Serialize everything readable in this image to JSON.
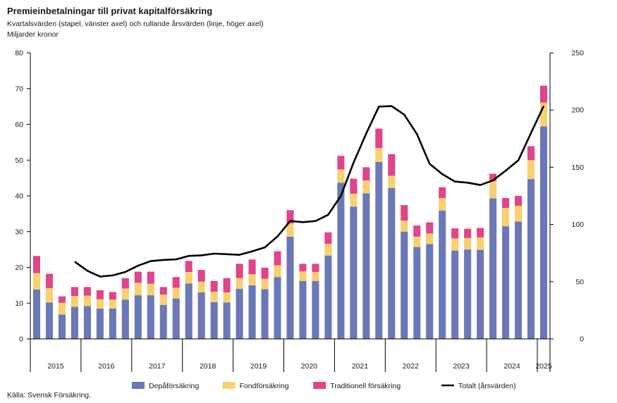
{
  "title": "Premieinbetalningar till privat kapitalförsäkring",
  "subtitle": "Kvartalsvärden (stapel, vänster axel) och rullande årsvärden (linje, höger axel)",
  "unit_label": "Miljarder kronor",
  "source": "Källa: Svensk Försäkring.",
  "chart_data": {
    "type": "bar",
    "stacked": true,
    "title": "Premieinbetalningar till privat kapitalförsäkring",
    "ylim": [
      0,
      80
    ],
    "y_ticks": [
      0,
      10,
      20,
      30,
      40,
      50,
      60,
      70,
      80
    ],
    "y2lim": [
      0,
      250
    ],
    "y2_ticks": [
      0,
      50,
      100,
      150,
      200,
      250
    ],
    "grid": false,
    "legend_position": "bottom",
    "year_labels": [
      "2015",
      "2016",
      "2017",
      "2018",
      "2019",
      "2020",
      "2021",
      "2022",
      "2023",
      "2024",
      "2025"
    ],
    "quarters_per_year": [
      4,
      4,
      4,
      4,
      4,
      4,
      4,
      4,
      4,
      4,
      1
    ],
    "colors": {
      "depa": "#6a78b8",
      "fond": "#f7d06f",
      "trad": "#e0448a",
      "total": "#000000",
      "axis": "#000000"
    },
    "series": [
      {
        "name": "Depåförsäkring",
        "axis": "left",
        "values": [
          13.8,
          10.2,
          6.8,
          9.0,
          9.2,
          8.5,
          8.5,
          11.0,
          12.2,
          12.2,
          9.5,
          11.3,
          15.5,
          13.0,
          10.3,
          10.2,
          14.0,
          15.0,
          13.9,
          17.3,
          28.6,
          16.2,
          16.2,
          23.3,
          43.7,
          37.0,
          40.7,
          49.5,
          42.2,
          30.0,
          25.7,
          26.5,
          35.9,
          24.7,
          25.0,
          24.9,
          39.3,
          31.5,
          32.8,
          44.7,
          59.4
        ]
      },
      {
        "name": "Fondförsäkring",
        "axis": "left",
        "values": [
          4.6,
          4.0,
          3.3,
          3.0,
          2.9,
          2.6,
          2.5,
          3.1,
          3.5,
          3.2,
          2.9,
          3.0,
          3.2,
          3.0,
          2.9,
          2.8,
          3.0,
          3.1,
          2.9,
          3.3,
          3.7,
          2.7,
          2.5,
          3.3,
          3.7,
          3.6,
          3.6,
          3.9,
          3.4,
          3.1,
          2.9,
          3.0,
          3.5,
          3.4,
          3.2,
          3.5,
          4.8,
          5.1,
          4.4,
          5.3,
          6.7
        ]
      },
      {
        "name": "Traditionell försäkring",
        "axis": "left",
        "values": [
          4.8,
          4.0,
          1.8,
          2.5,
          2.4,
          2.5,
          2.1,
          2.9,
          3.1,
          3.4,
          2.1,
          3.0,
          3.1,
          3.3,
          3.0,
          4.0,
          4.0,
          4.1,
          3.1,
          3.9,
          3.7,
          2.1,
          2.3,
          3.2,
          3.8,
          4.2,
          3.7,
          5.4,
          6.1,
          4.3,
          3.1,
          3.1,
          3.0,
          2.8,
          2.6,
          2.6,
          2.1,
          2.8,
          2.8,
          3.9,
          4.7
        ]
      },
      {
        "name": "Totalt (årsvärden)",
        "type": "line",
        "axis": "right",
        "values": [
          null,
          null,
          null,
          67.5,
          59.5,
          54.5,
          55.5,
          58.5,
          64.0,
          68.0,
          69.0,
          69.5,
          72.5,
          73.0,
          74.5,
          74.0,
          73.5,
          76.5,
          80.0,
          89.5,
          103.0,
          102.0,
          103.0,
          108.5,
          125.0,
          154.0,
          179.5,
          203.0,
          203.5,
          196.0,
          179.0,
          153.0,
          144.0,
          137.5,
          136.5,
          134.5,
          138.5,
          147.0,
          156.0,
          180.0,
          203.5
        ]
      }
    ]
  }
}
